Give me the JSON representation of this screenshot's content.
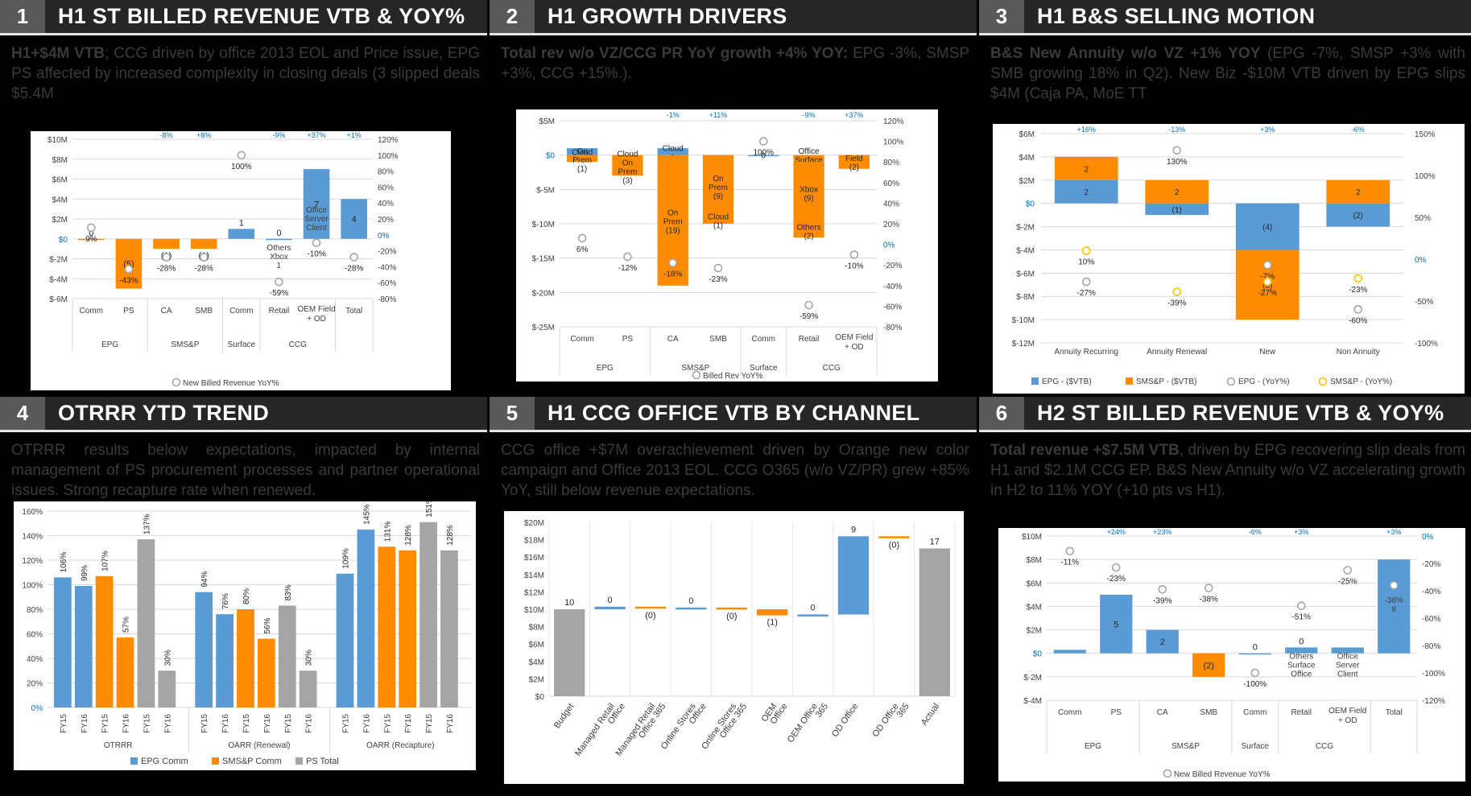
{
  "panels": [
    {
      "num": "1",
      "title": "H1 ST BILLED REVENUE VTB & YOY%",
      "desc_bold": "H1+$4M VTB",
      "desc": "; CCG driven by office 2013 EOL and Price issue, EPG PS affected by increased complexity in closing deals (3 slipped deals $5.4M"
    },
    {
      "num": "2",
      "title": "H1 GROWTH DRIVERS",
      "desc_bold": "Total rev w/o VZ/CCG PR YoY growth +4% YOY:",
      "desc": " EPG -3%, SMSP +3%, CCG +15%.)."
    },
    {
      "num": "3",
      "title": "H1 B&S SELLING MOTION",
      "desc_bold": "B&S New Annuity w/o VZ +1% YOY",
      "desc": " (EPG -7%, SMSP +3% with SMB growing 18% in Q2).  New Biz -$10M VTB driven by EPG slips $4M (Caja PA, MoE TT"
    },
    {
      "num": "4",
      "title": "OTRRR YTD TREND",
      "desc_bold": "",
      "desc": "OTRRR results below expectations, impacted by internal management of PS procurement processes and partner operational issues. Strong recapture rate when renewed."
    },
    {
      "num": "5",
      "title": "H1 CCG OFFICE VTB BY CHANNEL",
      "desc_bold": "",
      "desc": "CCG office +$7M overachievement driven by Orange new color campaign and Office 2013 EOL. CCG O365 (w/o VZ/PR) grew +85% YoY, still below revenue expectations."
    },
    {
      "num": "6",
      "title": "H2 ST BILLED REVENUE VTB & YOY%",
      "desc_bold": "Total revenue +$7.5M VTB",
      "desc": ", driven by EPG recovering slip deals from H1 and $2.1M CCG EP. B&S New Annuity w/o VZ accelerating growth in H2 to 11% YOY (+10 pts vs H1)."
    }
  ],
  "colors": {
    "blue": "#5b9bd5",
    "orange": "#ff8c00",
    "gray": "#a5a5a5",
    "yoy_blue": "#0070c0"
  },
  "chart_data": [
    {
      "id": "c1",
      "type": "bar",
      "title": "H1 ST Billed Revenue VTB & YoY%",
      "categories": [
        "Comm",
        "PS",
        "CA",
        "SMB",
        "Comm",
        "Retail",
        "OEM Field + OD",
        "Total"
      ],
      "groups": [
        {
          "name": "EPG",
          "span": 2
        },
        {
          "name": "SMS&P",
          "span": 2
        },
        {
          "name": "Surface",
          "span": 1
        },
        {
          "name": "CCG",
          "span": 2
        },
        {
          "name": "",
          "span": 1
        }
      ],
      "values": [
        0,
        -5,
        -1,
        -1,
        1,
        0,
        7,
        4
      ],
      "color": [
        "orange",
        "orange",
        "orange",
        "orange",
        "blue",
        "blue",
        "blue",
        "blue"
      ],
      "bar_labels": [
        "0",
        "(5)",
        "(1)",
        "(1)",
        "1",
        "0",
        "7",
        "4"
      ],
      "inner_labels": [
        [],
        [],
        [],
        [],
        [],
        [
          "Others",
          "Xbox",
          "1"
        ],
        [
          "Office",
          "Server",
          "Client"
        ],
        []
      ],
      "yoy": [
        9,
        -43,
        -28,
        -28,
        100,
        -59,
        -10,
        -28
      ],
      "yoy_labels": [
        "9%",
        "-43%",
        "-28%",
        "-28%",
        "100%",
        "-59%",
        "-10%",
        "-28%"
      ],
      "top_pct": [
        "",
        "",
        "-8%",
        "+8%",
        "",
        "-9%",
        "+37%",
        "+1%"
      ],
      "ylim": [
        -6,
        10
      ],
      "yticks": [
        "$10M",
        "$8M",
        "$6M",
        "$4M",
        "$2M",
        "$0",
        "$-2M",
        "$-4M",
        "$-6M"
      ],
      "y2lim": [
        -80,
        120
      ],
      "y2ticks": [
        "120%",
        "100%",
        "80%",
        "60%",
        "40%",
        "20%",
        "0%",
        "-20%",
        "-40%",
        "-60%",
        "-80%"
      ],
      "legend": "New Billed Revenue YoY%"
    },
    {
      "id": "c2",
      "type": "bar",
      "title": "H1 Growth Drivers",
      "categories": [
        "Comm",
        "PS",
        "CA",
        "SMB",
        "Comm",
        "Retail",
        "OEM Field + OD"
      ],
      "groups": [
        {
          "name": "EPG",
          "span": 2
        },
        {
          "name": "SMS&P",
          "span": 2
        },
        {
          "name": "Surface",
          "span": 1
        },
        {
          "name": "CCG",
          "span": 2
        }
      ],
      "segments": [
        [
          {
            "v": 1,
            "c": "blue",
            "l": "Cloud"
          },
          {
            "v": -1,
            "c": "orange",
            "l": "On Prem (1)"
          }
        ],
        [
          {
            "v": -3,
            "c": "orange",
            "l": "Cloud On Prem (3)"
          }
        ],
        [
          {
            "v": 1,
            "c": "blue",
            "l": "Cloud 1"
          },
          {
            "v": -19,
            "c": "orange",
            "l": "On Prem (19)"
          }
        ],
        [
          {
            "v": -9,
            "c": "orange",
            "l": "On Prem (9)"
          },
          {
            "v": -1,
            "c": "orange",
            "l": "Cloud (1)"
          }
        ],
        [
          {
            "v": 0,
            "c": "blue",
            "l": "0"
          }
        ],
        [
          {
            "v": -1,
            "c": "orange",
            "l": "Office Surface (1)"
          },
          {
            "v": -9,
            "c": "orange",
            "l": "Xbox (9)"
          },
          {
            "v": -2,
            "c": "orange",
            "l": "Others (2)"
          }
        ],
        [
          {
            "v": -2,
            "c": "orange",
            "l": "Field (2)"
          }
        ]
      ],
      "yoy": [
        6,
        -12,
        -18,
        -23,
        100,
        -59,
        -10
      ],
      "yoy_labels": [
        "6%",
        "-12%",
        "-18%",
        "-23%",
        "100%",
        "-59%",
        "-10%"
      ],
      "top_pct": [
        "",
        "",
        "-1%",
        "+11%",
        "",
        "-9%",
        "+37%"
      ],
      "ylim": [
        -25,
        5
      ],
      "yticks": [
        "$5M",
        "$0",
        "$-5M",
        "$-10M",
        "$-15M",
        "$-20M",
        "$-25M"
      ],
      "y2lim": [
        -80,
        120
      ],
      "y2ticks": [
        "120%",
        "100%",
        "80%",
        "60%",
        "40%",
        "20%",
        "0%",
        "-20%",
        "-40%",
        "-60%",
        "-80%"
      ],
      "legend": "Billed Rev YoY%"
    },
    {
      "id": "c3",
      "type": "stacked-bar",
      "title": "H1 B&S Selling Motion",
      "categories": [
        "Annuity Recurring",
        "Annuity Renewal",
        "New",
        "Non Annuity"
      ],
      "series": [
        {
          "name": "EPG - ($VTB)",
          "values": [
            2,
            -1,
            -4,
            -2
          ]
        },
        {
          "name": "SMS&P - ($VTB)",
          "values": [
            2,
            2,
            -6,
            2
          ]
        }
      ],
      "bar_labels": [
        [
          "2",
          "2"
        ],
        [
          "(1)",
          "2"
        ],
        [
          "(4)",
          "(6)"
        ],
        [
          "(2)",
          "2"
        ]
      ],
      "yoy_epg": [
        -27,
        130,
        -7,
        -60
      ],
      "yoy_epg_labels": [
        "-27%",
        "130%",
        "-7%",
        "-60%"
      ],
      "yoy_smsp": [
        10,
        -39,
        -27,
        -23
      ],
      "yoy_smsp_labels": [
        "10%",
        "-39%",
        "-27%",
        "-23%"
      ],
      "top_pct": [
        "+16%",
        "-13%",
        "+3%",
        "-6%"
      ],
      "ylim": [
        -12,
        6
      ],
      "yticks": [
        "$6M",
        "$4M",
        "$2M",
        "$0",
        "$-2M",
        "$-4M",
        "$-6M",
        "$-8M",
        "$-10M",
        "$-12M"
      ],
      "y2lim": [
        -100,
        150
      ],
      "y2ticks": [
        "150%",
        "100%",
        "50%",
        "0%",
        "-50%",
        "-100%"
      ],
      "legend": [
        "EPG - ($VTB)",
        "SMS&P - ($VTB)",
        "EPG - (YoY%)",
        "SMS&P - (YoY%)"
      ]
    },
    {
      "id": "c4",
      "type": "bar",
      "title": "OTRRR YTD Trend",
      "groups": [
        {
          "name": "OTRRR",
          "bars": [
            {
              "x": "FY15",
              "v": 106,
              "c": "blue",
              "l": "106%"
            },
            {
              "x": "FY16",
              "v": 99,
              "c": "blue",
              "l": "99%"
            },
            {
              "x": "FY15",
              "v": 107,
              "c": "orange",
              "l": "107%"
            },
            {
              "x": "FY16",
              "v": 57,
              "c": "orange",
              "l": "57%"
            },
            {
              "x": "FY15",
              "v": 137,
              "c": "gray",
              "l": "137%"
            },
            {
              "x": "FY16",
              "v": 30,
              "c": "gray",
              "l": "30%"
            }
          ]
        },
        {
          "name": "OARR (Renewal)",
          "bars": [
            {
              "x": "FY15",
              "v": 94,
              "c": "blue",
              "l": "94%"
            },
            {
              "x": "FY16",
              "v": 76,
              "c": "blue",
              "l": "76%"
            },
            {
              "x": "FY15",
              "v": 80,
              "c": "orange",
              "l": "80%"
            },
            {
              "x": "FY16",
              "v": 56,
              "c": "orange",
              "l": "56%"
            },
            {
              "x": "FY15",
              "v": 83,
              "c": "gray",
              "l": "83%"
            },
            {
              "x": "FY16",
              "v": 30,
              "c": "gray",
              "l": "30%"
            }
          ]
        },
        {
          "name": "OARR (Recapture)",
          "bars": [
            {
              "x": "FY15",
              "v": 109,
              "c": "blue",
              "l": "109%"
            },
            {
              "x": "FY16",
              "v": 145,
              "c": "blue",
              "l": "145%"
            },
            {
              "x": "FY15",
              "v": 131,
              "c": "orange",
              "l": "131%"
            },
            {
              "x": "FY16",
              "v": 128,
              "c": "orange",
              "l": "128%"
            },
            {
              "x": "FY15",
              "v": 151,
              "c": "gray",
              "l": "151%"
            },
            {
              "x": "FY16",
              "v": 128,
              "c": "gray",
              "l": "128%"
            }
          ]
        }
      ],
      "ylim": [
        0,
        160
      ],
      "yticks": [
        "160%",
        "140%",
        "120%",
        "100%",
        "80%",
        "60%",
        "40%",
        "20%",
        "0%"
      ],
      "legend": [
        "EPG Comm",
        "SMS&P Comm",
        "PS Total"
      ]
    },
    {
      "id": "c5",
      "type": "waterfall",
      "title": "H1 CCG Office VTB by Channel",
      "categories": [
        "Budget",
        "Managed Retail Office",
        "Managed Retail Office 365",
        "Online Stores Office",
        "Online Stores Office 365",
        "OEM Office",
        "OEM Office 365",
        "OD Office",
        "OD Office 365",
        "Actual"
      ],
      "values": [
        10,
        0.3,
        -0.2,
        0.1,
        -0.2,
        -0.7,
        0.1,
        9,
        -0.2,
        17
      ],
      "kind": [
        "total",
        "up",
        "down",
        "up",
        "down",
        "down",
        "up",
        "up",
        "down",
        "total"
      ],
      "bar_labels": [
        "10",
        "0",
        "(0)",
        "0",
        "(0)",
        "(1)",
        "0",
        "9",
        "(0)",
        "17"
      ],
      "ylim": [
        0,
        20
      ],
      "yticks": [
        "$20M",
        "$18M",
        "$16M",
        "$14M",
        "$12M",
        "$10M",
        "$8M",
        "$6M",
        "$4M",
        "$2M",
        "$0"
      ]
    },
    {
      "id": "c6",
      "type": "bar",
      "title": "H2 ST Billed Revenue VTB & YoY%",
      "categories": [
        "Comm",
        "PS",
        "CA",
        "SMB",
        "Comm",
        "Retail",
        "OEM Field + OD",
        "Total"
      ],
      "groups": [
        {
          "name": "EPG",
          "span": 2
        },
        {
          "name": "SMS&P",
          "span": 2
        },
        {
          "name": "Surface",
          "span": 1
        },
        {
          "name": "CCG",
          "span": 2
        },
        {
          "name": "",
          "span": 1
        }
      ],
      "values": [
        0.3,
        5,
        2,
        -2,
        0,
        0.5,
        0.5,
        8
      ],
      "color": [
        "blue",
        "blue",
        "blue",
        "orange",
        "blue",
        "blue",
        "blue",
        "blue"
      ],
      "bar_labels": [
        "",
        "5",
        "2",
        "(2)",
        "0",
        "0",
        "",
        ""
      ],
      "inner_labels": [
        [],
        [],
        [],
        [],
        [],
        [
          "Others",
          "Surface",
          "Office"
        ],
        [
          "Office",
          "Server",
          "Client"
        ],
        [
          "-36%",
          "8"
        ]
      ],
      "yoy": [
        -11,
        -23,
        -39,
        -38,
        -100,
        -51,
        -25,
        -36
      ],
      "yoy_labels": [
        "-11%",
        "-23%",
        "-39%",
        "-38%",
        "-100%",
        "-51%",
        "-25%",
        ""
      ],
      "top_pct": [
        "",
        "+24%",
        "+23%",
        "",
        "-6%",
        "+3%",
        "",
        "+3%"
      ],
      "ylim": [
        -4,
        10
      ],
      "yticks": [
        "$10M",
        "$8M",
        "$6M",
        "$4M",
        "$2M",
        "$0",
        "$-2M",
        "$-4M"
      ],
      "y2lim": [
        -120,
        0
      ],
      "y2ticks": [
        "0%",
        "-20%",
        "-40%",
        "-60%",
        "-80%",
        "-100%",
        "-120%"
      ],
      "legend": "New Billed Revenue YoY%"
    }
  ]
}
